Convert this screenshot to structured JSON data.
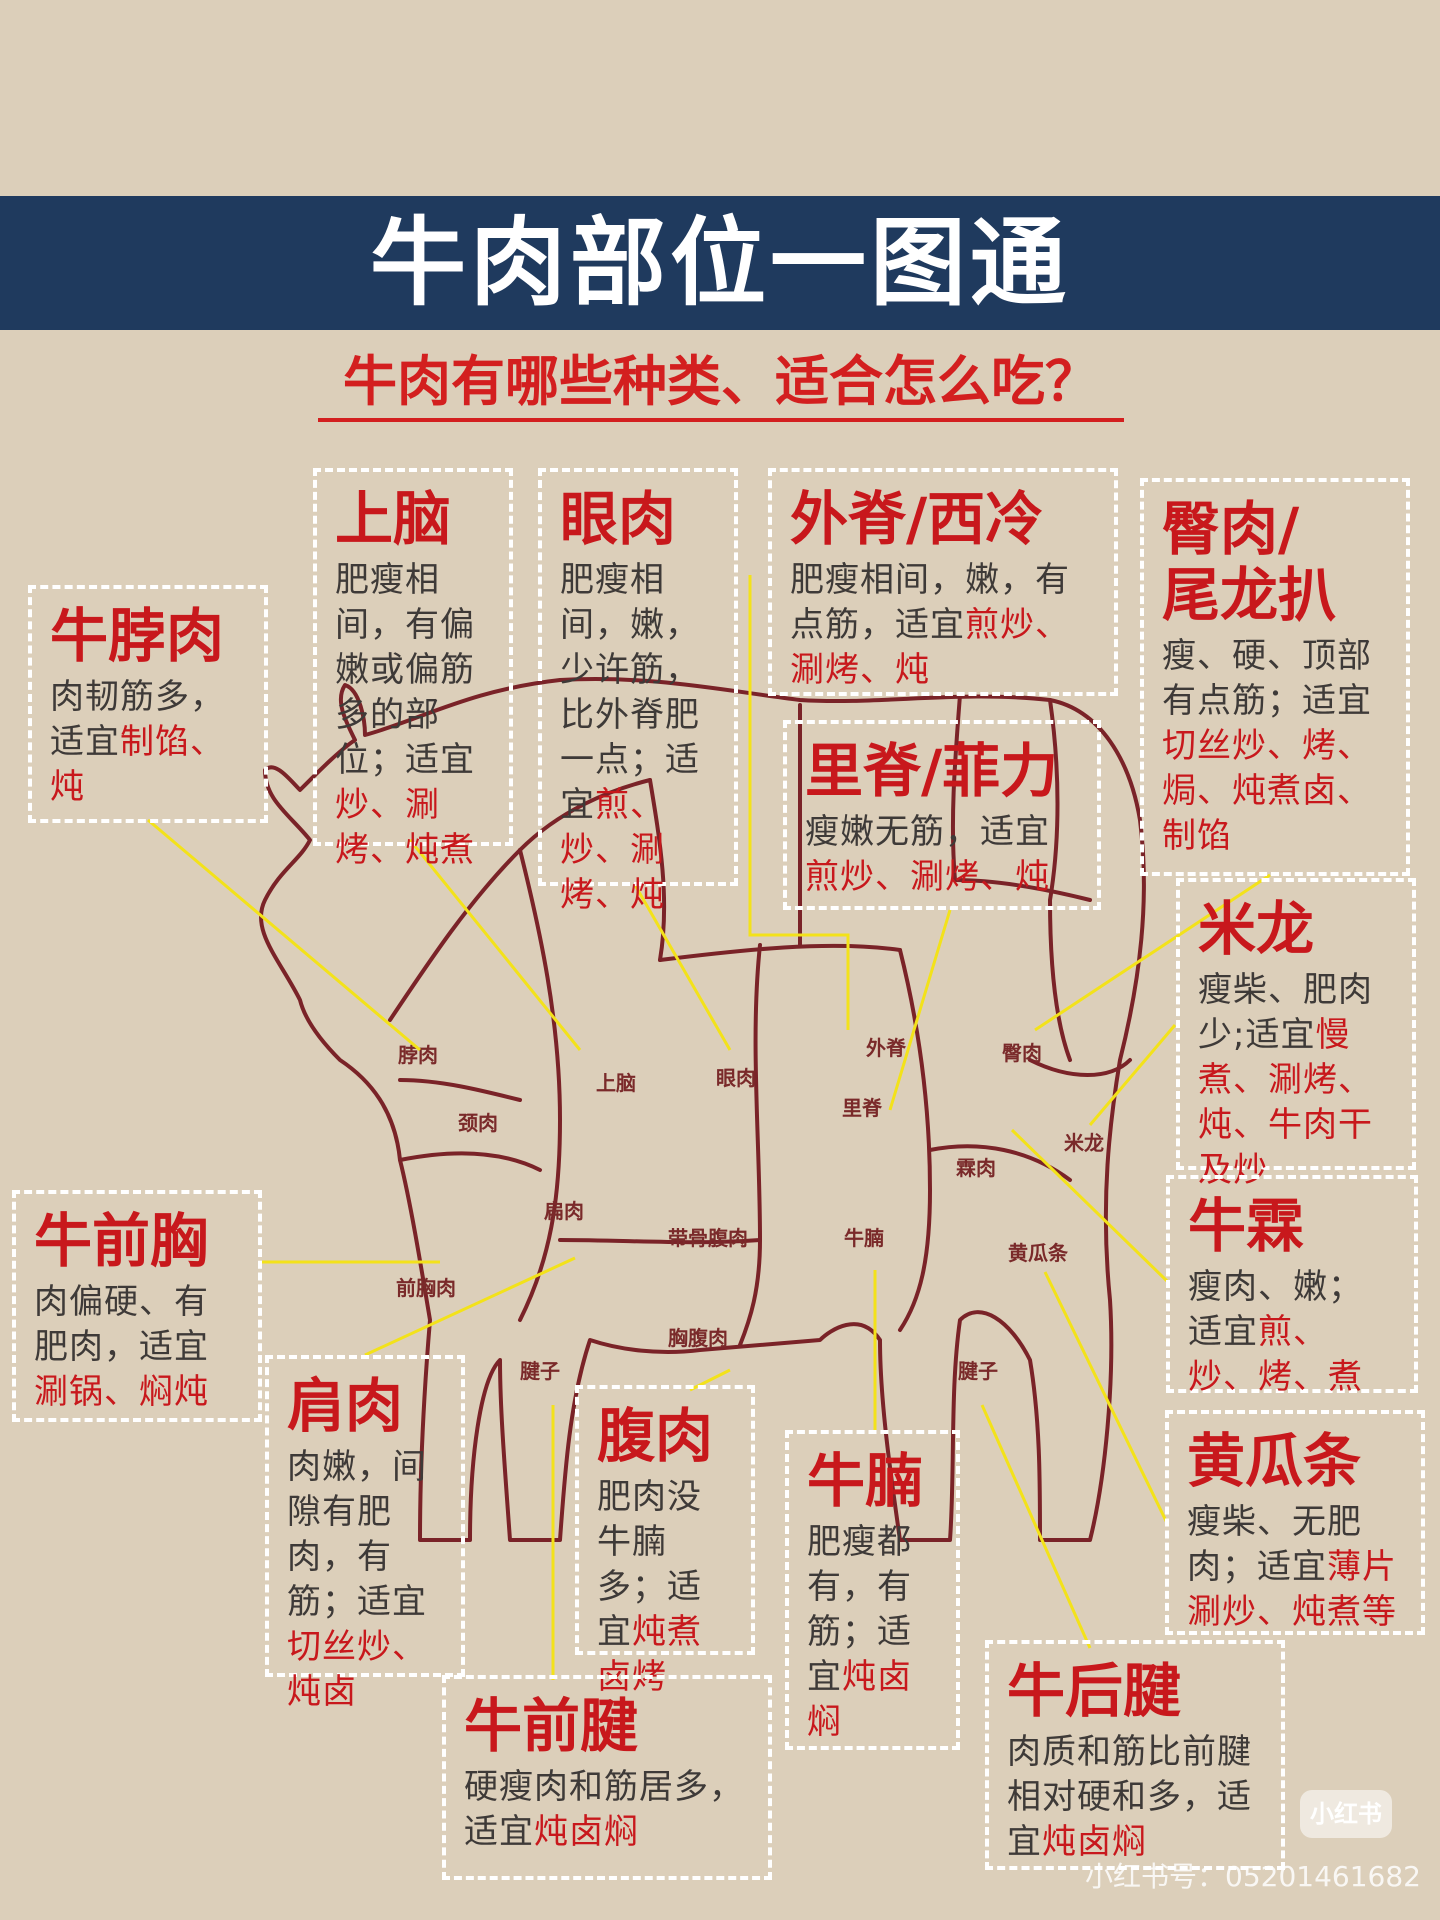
{
  "title": "牛肉部位一图通",
  "subtitle": "牛肉有哪些种类、适合怎么吃？",
  "parts": [
    {
      "key": "neck",
      "title": "牛脖肉",
      "pre": "肉韧筋多，适宜",
      "red": "制馅、炖",
      "post": ""
    },
    {
      "key": "chuck",
      "title": "上脑",
      "pre": "肥瘦相间，有偏嫩或偏筋多的部位；适宜",
      "red": "炒、涮烤、炖煮",
      "post": ""
    },
    {
      "key": "ribeye",
      "title": "眼肉",
      "pre": "肥瘦相间，嫩，少许筋，比外脊肥一点；适宜",
      "red": "煎、炒、涮烤、炖",
      "post": ""
    },
    {
      "key": "striploin",
      "title": "外脊/西冷",
      "pre": "肥瘦相间，嫩，有点筋，适宜",
      "red": "煎炒、涮烤、炖",
      "post": ""
    },
    {
      "key": "rump",
      "title": "臀肉/\n尾龙扒",
      "pre": "瘦、硬、顶部有点筋；适宜",
      "red": "切丝炒、烤、焗、炖煮卤、制馅",
      "post": ""
    },
    {
      "key": "tenderloin",
      "title": "里脊/菲力",
      "pre": "瘦嫩无筋，适宜",
      "red": "煎炒、涮烤、炖",
      "post": ""
    },
    {
      "key": "silverside",
      "title": "米龙",
      "pre": "瘦柴、肥肉少;适宜",
      "red": "慢煮、涮烤、炖、牛肉干及炒",
      "post": ""
    },
    {
      "key": "brisket",
      "title": "牛前胸",
      "pre": "肉偏硬、有肥肉，适宜",
      "red": "涮锅、焖炖",
      "post": ""
    },
    {
      "key": "knuckle",
      "title": "牛霖",
      "pre": "瘦肉、嫩；适宜",
      "red": "煎、炒、烤、煮",
      "post": ""
    },
    {
      "key": "shoulder",
      "title": "肩肉",
      "pre": "肉嫩，间隙有肥肉，有筋；适宜",
      "red": "切丝炒、炖卤",
      "post": ""
    },
    {
      "key": "flank",
      "title": "腹肉",
      "pre": "肥肉没牛腩多；适宜",
      "red": "炖煮卤烤",
      "post": ""
    },
    {
      "key": "plate",
      "title": "牛腩",
      "pre": "肥瘦都有，有筋；适宜",
      "red": "炖卤焖",
      "post": ""
    },
    {
      "key": "eyeround",
      "title": "黄瓜条",
      "pre": "瘦柴、无肥肉；适宜",
      "red": "薄片涮炒、炖煮等",
      "post": ""
    },
    {
      "key": "foreshank",
      "title": "牛前腱",
      "pre": "硬瘦肉和筋居多，适宜",
      "red": "炖卤焖",
      "post": ""
    },
    {
      "key": "hindshank",
      "title": "牛后腱",
      "pre": "肉质和筋比前腱相对硬和多，适宜",
      "red": "炖卤焖",
      "post": ""
    }
  ],
  "cow_labels": {
    "neck": "脖肉",
    "neck2": "颈肉",
    "chuck": "上脑",
    "ribeye": "眼肉",
    "striploin": "外脊",
    "tenderloin": "里脊",
    "rump": "臀肉",
    "silverside": "米龙",
    "knuckle": "霖肉",
    "shoulder": "扁肉",
    "ribs": "带骨腹肉",
    "plate": "牛腩",
    "eyeround": "黄瓜条",
    "brisket": "前胸肉",
    "belly": "胸腹肉",
    "foreshank": "腱子",
    "hindshank": "腱子"
  },
  "watermark": "小红书号：05201461682",
  "logo": "小红书"
}
